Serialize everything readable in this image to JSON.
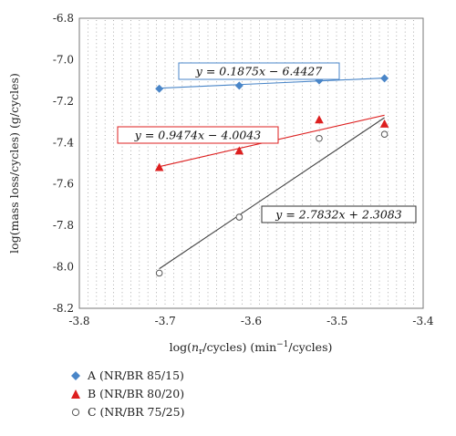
{
  "chart_data": {
    "type": "scatter",
    "x_range": [
      -3.8,
      -3.4
    ],
    "y_range": [
      -8.2,
      -6.8
    ],
    "x_ticks": [
      "-3.8",
      "-3.7",
      "-3.6",
      "-3.5",
      "-3.4"
    ],
    "y_ticks": [
      "-6.8",
      "-7.0",
      "-7.2",
      "-7.4",
      "-7.6",
      "-7.8",
      "-8.0",
      "-8.2"
    ],
    "x_tick_values": [
      -3.8,
      -3.7,
      -3.6,
      -3.5,
      -3.4
    ],
    "y_tick_values": [
      -6.8,
      -7.0,
      -7.2,
      -7.4,
      -7.6,
      -7.8,
      -8.0,
      -8.2
    ],
    "xlabel_parts": [
      "log(",
      "n",
      "r",
      "/cycles) (min",
      "−1",
      "/cycles)"
    ],
    "ylabel": "log(mass loss/cycles) (g/cycles)",
    "grid": "dotted",
    "series": [
      {
        "name": "A (NR/BR 85/15)",
        "marker": "diamond",
        "color": "#4a86c8",
        "x": [
          -3.707,
          -3.614,
          -3.521,
          -3.445
        ],
        "y": [
          -7.14,
          -7.125,
          -7.1,
          -7.09
        ],
        "fit_slope": 0.1875,
        "fit_intercept": -6.4427,
        "equation": "y = 0.1875x − 6.4427"
      },
      {
        "name": "B (NR/BR 80/20)",
        "marker": "triangle",
        "color": "#dd1f1f",
        "x": [
          -3.707,
          -3.614,
          -3.521,
          -3.445
        ],
        "y": [
          -7.52,
          -7.44,
          -7.29,
          -7.31
        ],
        "fit_slope": 0.9474,
        "fit_intercept": -4.0043,
        "equation": "y = 0.9474x − 4.0043"
      },
      {
        "name": "C (NR/BR 75/25)",
        "marker": "circle",
        "color": "#555555",
        "x": [
          -3.707,
          -3.614,
          -3.521,
          -3.445
        ],
        "y": [
          -8.03,
          -7.76,
          -7.38,
          -7.36
        ],
        "fit_slope": 2.7832,
        "fit_intercept": 2.3083,
        "equation": "y = 2.7832x + 2.3083"
      }
    ]
  }
}
